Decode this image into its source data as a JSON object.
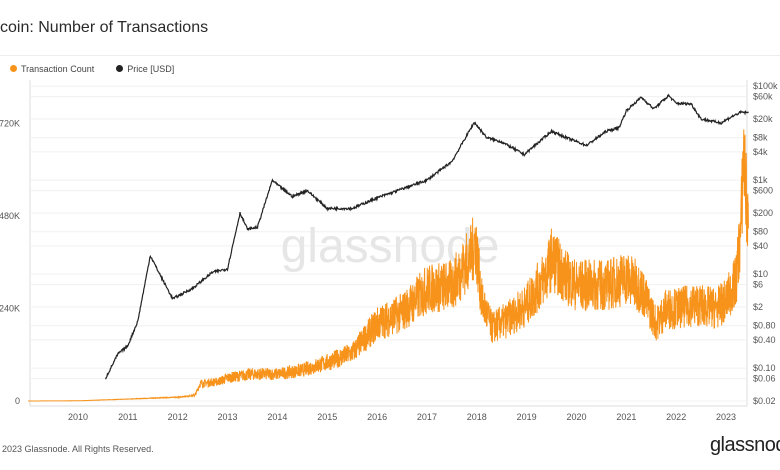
{
  "title": "itcoin: Number of Transactions",
  "footer": "2023 Glassnode. All Rights Reserved.",
  "brand": "glassnod",
  "watermark": "glassnode",
  "chart_data": {
    "type": "line",
    "title": "itcoin: Number of Transactions",
    "legend_position": "top-left",
    "grid": true,
    "x_ticks": [
      "2010",
      "2011",
      "2012",
      "2013",
      "2014",
      "2015",
      "2016",
      "2017",
      "2018",
      "2019",
      "2020",
      "2021",
      "2022",
      "2023"
    ],
    "xlim": [
      2009.0,
      2023.45
    ],
    "y_left": {
      "ticks": [
        "0",
        "240K",
        "480K",
        "720K"
      ],
      "tick_values": [
        0,
        240000,
        480000,
        720000
      ],
      "ylim": [
        0,
        780000
      ]
    },
    "y_right": {
      "scale": "log",
      "ticks": [
        "$0.02",
        "$0.06",
        "$0.10",
        "$0.40",
        "$0.80",
        "$2",
        "$6",
        "$10",
        "$40",
        "$80",
        "$200",
        "$600",
        "$1k",
        "$4k",
        "$8k",
        "$20k",
        "$60k",
        "$100k"
      ],
      "tick_values": [
        0.02,
        0.06,
        0.1,
        0.4,
        0.8,
        2,
        6,
        10,
        40,
        80,
        200,
        600,
        1000,
        4000,
        8000,
        20000,
        60000,
        100000
      ],
      "ylim": [
        0.02,
        100000
      ]
    },
    "series": [
      {
        "name": "Transaction Count",
        "color": "#f7931a",
        "axis": "left",
        "x": [
          2009.0,
          2010.0,
          2011.0,
          2012.0,
          2012.35,
          2012.45,
          2012.8,
          2013.0,
          2013.5,
          2014.0,
          2014.5,
          2015.0,
          2015.5,
          2016.0,
          2016.5,
          2017.0,
          2017.5,
          2017.9,
          2017.97,
          2018.1,
          2018.3,
          2018.6,
          2019.0,
          2019.4,
          2019.5,
          2019.8,
          2020.0,
          2020.3,
          2020.6,
          2021.0,
          2021.3,
          2021.6,
          2021.8,
          2022.0,
          2022.4,
          2022.8,
          2023.0,
          2023.2,
          2023.3,
          2023.35,
          2023.45
        ],
        "y": [
          0,
          500,
          5000,
          10000,
          15000,
          45000,
          50000,
          60000,
          70000,
          70000,
          80000,
          100000,
          125000,
          200000,
          230000,
          290000,
          300000,
          380000,
          420000,
          260000,
          190000,
          210000,
          250000,
          330000,
          370000,
          320000,
          300000,
          300000,
          300000,
          320000,
          290000,
          200000,
          240000,
          240000,
          250000,
          240000,
          260000,
          310000,
          450000,
          650000,
          430000
        ]
      },
      {
        "name": "Price [USD]",
        "color": "#222222",
        "axis": "right",
        "x": [
          2010.55,
          2010.8,
          2011.0,
          2011.2,
          2011.45,
          2011.6,
          2011.9,
          2012.3,
          2012.7,
          2013.0,
          2013.25,
          2013.4,
          2013.6,
          2013.9,
          2014.0,
          2014.3,
          2014.6,
          2015.0,
          2015.5,
          2016.0,
          2016.5,
          2017.0,
          2017.5,
          2017.95,
          2018.2,
          2018.5,
          2018.95,
          2019.5,
          2019.8,
          2020.2,
          2020.6,
          2020.85,
          2021.0,
          2021.3,
          2021.55,
          2021.85,
          2022.0,
          2022.3,
          2022.5,
          2022.9,
          2023.1,
          2023.3,
          2023.45
        ],
        "y": [
          0.06,
          0.2,
          0.3,
          1,
          25,
          12,
          3,
          5,
          11,
          13,
          200,
          90,
          100,
          1000,
          800,
          450,
          600,
          250,
          250,
          420,
          650,
          1000,
          2500,
          17000,
          8000,
          6500,
          3500,
          11000,
          8000,
          5500,
          11000,
          13000,
          30000,
          58000,
          33000,
          63000,
          43000,
          42000,
          20000,
          16500,
          22000,
          28000,
          27000
        ]
      }
    ]
  }
}
